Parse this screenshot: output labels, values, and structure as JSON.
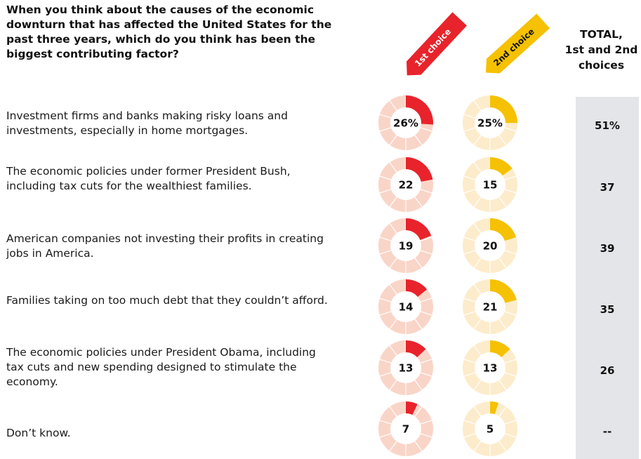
{
  "question": "When you think about the causes of the economic downturn that has affected the United States for the past three years, which do you think has been the biggest contributing factor?",
  "headers": {
    "first_choice": "1st choice",
    "second_choice": "2nd choice",
    "total_line1": "TOTAL,",
    "total_line2": "1st and 2nd",
    "total_line3": "choices"
  },
  "colors": {
    "first_fill": "#e8232b",
    "first_track": "#f9d5c8",
    "second_fill": "#f5c100",
    "second_track": "#fdeccb",
    "total_bg": "#e4e5e8"
  },
  "chart_data": {
    "type": "donut",
    "categories": [
      "Investment firms and banks making risky loans and investments, especially in home mortgages.",
      "The economic policies under former President Bush, including tax cuts for the wealthiest families.",
      "American companies not investing their profits in creating jobs in America.",
      "Families taking on too much debt that they couldn’t afford.",
      "The economic policies under President Obama, including tax cuts and new spending designed to stimulate the economy.",
      "Don’t know."
    ],
    "series": [
      {
        "name": "1st choice",
        "values": [
          26,
          22,
          19,
          14,
          13,
          7
        ],
        "labels": [
          "26%",
          "22",
          "19",
          "14",
          "13",
          "7"
        ]
      },
      {
        "name": "2nd choice",
        "values": [
          25,
          15,
          20,
          21,
          13,
          5
        ],
        "labels": [
          "25%",
          "15",
          "20",
          "21",
          "13",
          "5"
        ]
      }
    ],
    "totals": [
      "51%",
      "37",
      "39",
      "35",
      "26",
      "--"
    ]
  }
}
